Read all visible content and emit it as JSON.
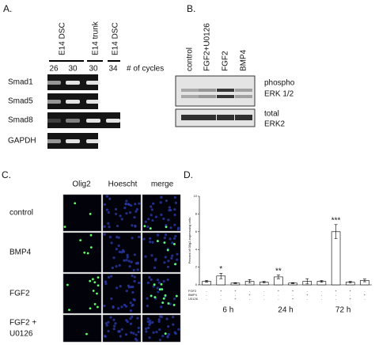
{
  "panel_a": {
    "label": "A.",
    "column_groups": [
      "E14 DSC",
      "E14 trunk",
      "E14 DSC"
    ],
    "cycles": [
      "26",
      "30",
      "30",
      "34"
    ],
    "cycles_label": "# of cycles",
    "rows": [
      "Smad1",
      "Smad5",
      "Smad8",
      "GAPDH"
    ]
  },
  "panel_b": {
    "label": "B.",
    "lanes": [
      "control",
      "FGF2+U0126",
      "FGF2",
      "BMP4"
    ],
    "blots": [
      [
        "phospho",
        "ERK 1/2"
      ],
      [
        "total",
        "ERK2"
      ]
    ]
  },
  "panel_c": {
    "label": "C.",
    "columns": [
      "Olig2",
      "Hoescht",
      "merge"
    ],
    "rows": [
      [
        "control"
      ],
      [
        "BMP4"
      ],
      [
        "FGF2"
      ],
      [
        "FGF2 +",
        "U0126"
      ]
    ]
  },
  "chart_data": {
    "type": "bar",
    "panel_label": "D.",
    "y_label": "Percent of Olig2-expressing cells",
    "categories": [
      null,
      null,
      null,
      null,
      null,
      null,
      null,
      null,
      null,
      null,
      null,
      null
    ],
    "values": [
      0.4,
      1.0,
      0.2,
      0.4,
      0.3,
      0.9,
      0.2,
      0.4,
      0.4,
      6.0,
      0.3,
      0.5
    ],
    "errors": [
      0.1,
      0.3,
      0.05,
      0.2,
      0.1,
      0.2,
      0.05,
      0.3,
      0.1,
      0.8,
      0.1,
      0.15
    ],
    "significance": [
      null,
      "*",
      null,
      null,
      null,
      "**",
      null,
      null,
      null,
      "***",
      null,
      null
    ],
    "groups": [
      "6 h",
      "24 h",
      "72 h"
    ],
    "treatments": [
      "FGF2",
      "BMP4",
      "U0126"
    ],
    "treatment_signs": [
      [
        "-",
        "+",
        "+",
        "-",
        "-",
        "+",
        "+",
        "-",
        "-",
        "+",
        "+",
        "-"
      ],
      [
        "-",
        "-",
        "-",
        "+",
        "-",
        "-",
        "-",
        "+",
        "-",
        "-",
        "-",
        "+"
      ],
      [
        "-",
        "-",
        "+",
        "-",
        "-",
        "-",
        "+",
        "-",
        "-",
        "-",
        "+",
        "-"
      ]
    ],
    "color": "#ffffff",
    "ylim": [
      0,
      10
    ],
    "yticks": [
      0,
      2,
      4,
      6,
      8,
      10
    ]
  }
}
